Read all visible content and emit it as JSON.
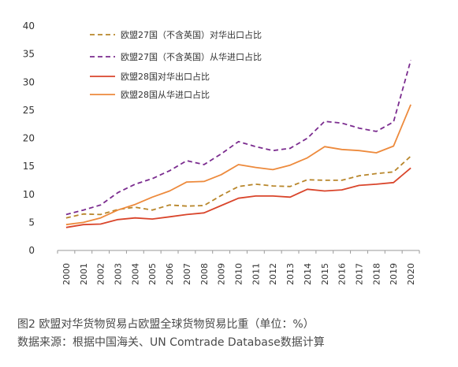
{
  "chart_data": {
    "type": "line",
    "x": [
      "2000",
      "2001",
      "2002",
      "2003",
      "2004",
      "2005",
      "2006",
      "2007",
      "2008",
      "2009",
      "2010",
      "2011",
      "2012",
      "2013",
      "2014",
      "2015",
      "2016",
      "2017",
      "2018",
      "2019",
      "2020"
    ],
    "ylim": [
      0,
      40
    ],
    "yticks": [
      0,
      5,
      10,
      15,
      20,
      25,
      30,
      35,
      40
    ],
    "grid": false,
    "legend_position": "top-left",
    "series": [
      {
        "name": "欧盟27国（不含英国）对华出口占比",
        "style": "dashed",
        "color": "#b8862b",
        "values": [
          5.8,
          6.5,
          6.4,
          7.3,
          7.7,
          7.2,
          8.1,
          7.9,
          8.0,
          9.8,
          11.4,
          11.8,
          11.5,
          11.4,
          12.6,
          12.5,
          12.5,
          13.3,
          13.7,
          14.0,
          16.8
        ]
      },
      {
        "name": "欧盟27国（不含英国）从华进口占比",
        "style": "dashed",
        "color": "#7b2c8f",
        "values": [
          6.4,
          7.2,
          8.1,
          10.3,
          11.8,
          12.8,
          14.2,
          16.0,
          15.3,
          17.2,
          19.4,
          18.5,
          17.8,
          18.2,
          20.0,
          23.0,
          22.7,
          21.8,
          21.2,
          22.9,
          33.9
        ]
      },
      {
        "name": "欧盟28国对华出口占比",
        "style": "solid",
        "color": "#d9452b",
        "values": [
          4.1,
          4.6,
          4.7,
          5.5,
          5.8,
          5.6,
          6.0,
          6.4,
          6.7,
          8.0,
          9.3,
          9.7,
          9.7,
          9.5,
          10.9,
          10.6,
          10.8,
          11.6,
          11.8,
          12.1,
          14.7
        ]
      },
      {
        "name": "欧盟28国从华进口占比",
        "style": "solid",
        "color": "#ed8a3c",
        "values": [
          4.6,
          5.0,
          5.8,
          7.2,
          8.2,
          9.5,
          10.6,
          12.2,
          12.3,
          13.5,
          15.3,
          14.8,
          14.4,
          15.2,
          16.5,
          18.5,
          18.0,
          17.8,
          17.4,
          18.6,
          26.0
        ]
      }
    ]
  },
  "caption": {
    "title": "图2 欧盟对华货物贸易占欧盟全球货物贸易比重（单位：%）",
    "source": "数据来源：根据中国海关、UN Comtrade Database数据计算"
  }
}
